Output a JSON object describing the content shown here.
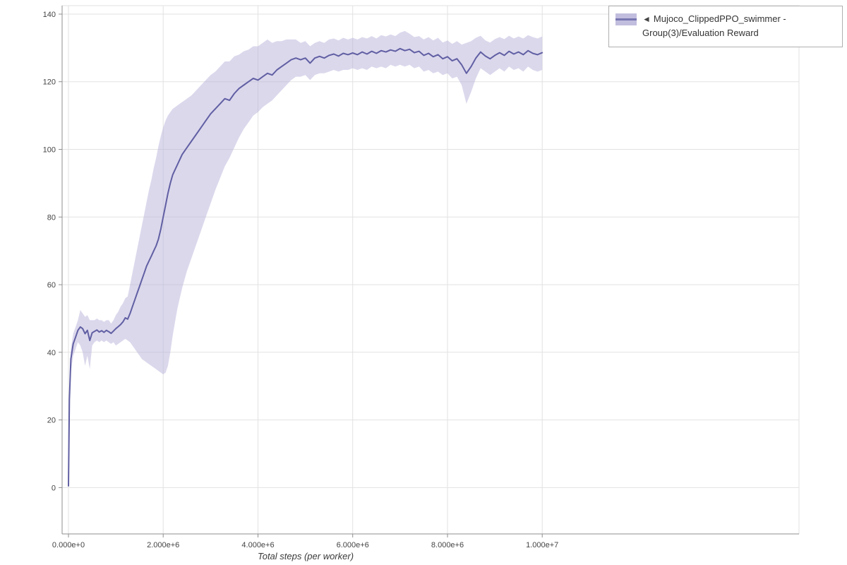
{
  "colors": {
    "line": "#615fa3",
    "band": "#b7b2d9",
    "grid": "#e2e2e2",
    "axis": "#8f8f8f",
    "tick_label": "#444444",
    "legend_border": "#b0b0b0"
  },
  "figure": {
    "legend": {
      "marker": "◄",
      "label": "Mujoco_ClippedPPO_swimmer - Group(3)/Evaluation Reward"
    }
  },
  "chart_data": {
    "type": "line",
    "title": "",
    "xlabel": "Total steps (per worker)",
    "ylabel": "",
    "x_unit": "millions of steps",
    "x_domain": [
      -0.134,
      15.42
    ],
    "y_domain": [
      -13.7,
      142.5
    ],
    "x_tick_values": [
      0,
      2,
      4,
      6,
      8,
      10
    ],
    "x_tick_labels": [
      "0.000e+0",
      "2.000e+6",
      "4.000e+6",
      "6.000e+6",
      "8.000e+6",
      "1.000e+7"
    ],
    "y_tick_values": [
      0,
      20,
      40,
      60,
      80,
      100,
      120,
      140
    ],
    "y_tick_labels": [
      "0",
      "20",
      "40",
      "60",
      "80",
      "100",
      "120",
      "140"
    ],
    "grid": true,
    "legend_position": "top-right-outside",
    "band_opacity": 0.5,
    "series": [
      {
        "name": "Mujoco_ClippedPPO_swimmer - Group(3)/Evaluation Reward",
        "x": [
          0.0,
          0.02,
          0.05,
          0.1,
          0.15,
          0.2,
          0.25,
          0.3,
          0.35,
          0.4,
          0.45,
          0.5,
          0.55,
          0.6,
          0.65,
          0.7,
          0.75,
          0.8,
          0.85,
          0.9,
          0.95,
          1.0,
          1.05,
          1.1,
          1.15,
          1.2,
          1.25,
          1.3,
          1.35,
          1.4,
          1.45,
          1.5,
          1.55,
          1.6,
          1.65,
          1.7,
          1.75,
          1.8,
          1.85,
          1.9,
          1.95,
          2.0,
          2.05,
          2.1,
          2.15,
          2.2,
          2.25,
          2.3,
          2.35,
          2.4,
          2.45,
          2.5,
          2.6,
          2.7,
          2.8,
          2.9,
          3.0,
          3.1,
          3.2,
          3.3,
          3.4,
          3.5,
          3.6,
          3.7,
          3.8,
          3.9,
          4.0,
          4.1,
          4.2,
          4.3,
          4.4,
          4.5,
          4.6,
          4.7,
          4.8,
          4.9,
          5.0,
          5.1,
          5.2,
          5.3,
          5.4,
          5.5,
          5.6,
          5.7,
          5.8,
          5.9,
          6.0,
          6.1,
          6.2,
          6.3,
          6.4,
          6.5,
          6.6,
          6.7,
          6.8,
          6.9,
          7.0,
          7.1,
          7.2,
          7.3,
          7.4,
          7.5,
          7.6,
          7.7,
          7.8,
          7.9,
          8.0,
          8.1,
          8.2,
          8.3,
          8.4,
          8.5,
          8.6,
          8.7,
          8.8,
          8.9,
          9.0,
          9.1,
          9.2,
          9.3,
          9.4,
          9.5,
          9.6,
          9.7,
          9.8,
          9.9,
          10.0
        ],
        "mean": [
          0.5,
          26,
          38,
          42.5,
          44.5,
          46.5,
          47.5,
          47.0,
          45.5,
          46.5,
          43.5,
          45.8,
          46.2,
          46.6,
          46.0,
          46.4,
          45.9,
          46.5,
          46.1,
          45.6,
          46.3,
          47.0,
          47.6,
          48.2,
          49.0,
          50.2,
          49.8,
          51.5,
          53.5,
          55.5,
          57.5,
          59.5,
          61.5,
          63.5,
          65.5,
          67.0,
          68.5,
          70.0,
          71.5,
          73.5,
          76.5,
          80.0,
          83.5,
          87.0,
          90.0,
          92.5,
          94.0,
          95.5,
          97.0,
          98.5,
          99.5,
          100.5,
          102.5,
          104.5,
          106.5,
          108.5,
          110.5,
          112.0,
          113.5,
          115.0,
          114.5,
          116.5,
          118.0,
          119.0,
          120.0,
          121.0,
          120.5,
          121.5,
          122.5,
          122.0,
          123.5,
          124.5,
          125.5,
          126.5,
          127.0,
          126.5,
          127.0,
          125.5,
          127.0,
          127.5,
          127.0,
          127.8,
          128.2,
          127.6,
          128.4,
          128.0,
          128.5,
          128.0,
          128.8,
          128.2,
          129.0,
          128.4,
          129.2,
          128.8,
          129.4,
          129.0,
          129.8,
          129.2,
          129.6,
          128.6,
          129.0,
          127.8,
          128.4,
          127.4,
          128.0,
          126.8,
          127.4,
          126.2,
          126.8,
          125.0,
          122.5,
          124.5,
          127.0,
          128.8,
          127.6,
          126.8,
          127.8,
          128.6,
          127.8,
          129.0,
          128.2,
          128.8,
          128.0,
          129.2,
          128.4,
          128.0,
          128.6
        ],
        "low": [
          0.5,
          24,
          34,
          39,
          41,
          43,
          42,
          40,
          36,
          39,
          35,
          42,
          43,
          43.5,
          43,
          43.5,
          43,
          43.5,
          43,
          42.5,
          43,
          42,
          42.5,
          43,
          43.5,
          44,
          43.5,
          43,
          42,
          41,
          40,
          39,
          38,
          37.5,
          37,
          36.5,
          36,
          35.5,
          35,
          34.5,
          34,
          33.5,
          34,
          36,
          40,
          45,
          49,
          53,
          56,
          59,
          61.5,
          64,
          68,
          72,
          76,
          80,
          84,
          88,
          91.5,
          95,
          97.5,
          100.5,
          103.5,
          106,
          108,
          110,
          111,
          112.5,
          113.5,
          114.5,
          116,
          117.5,
          119,
          120.5,
          121.5,
          121.5,
          122,
          120.5,
          122,
          122.5,
          122.5,
          123,
          123.5,
          123,
          123.5,
          123.5,
          124,
          123.5,
          124,
          123.5,
          124.5,
          124,
          124.5,
          124,
          125,
          124.5,
          125,
          124.5,
          125,
          124,
          124.5,
          123,
          123.5,
          122.5,
          123,
          122,
          122.5,
          121,
          121.5,
          119,
          113.5,
          117,
          121,
          124,
          123,
          122,
          123,
          124,
          123,
          124.5,
          123.5,
          124,
          123,
          124.5,
          123.5,
          123,
          123.5
        ],
        "high": [
          1,
          28,
          41,
          45.5,
          47.5,
          49.5,
          52.5,
          51.5,
          50.5,
          51,
          49.5,
          49.5,
          49.5,
          50,
          49.5,
          49.5,
          49,
          49.5,
          49.5,
          48.5,
          49.5,
          51,
          52,
          53.5,
          54.5,
          56,
          56.5,
          60,
          63.5,
          67,
          70.5,
          74,
          77.5,
          81,
          84.5,
          88,
          91,
          94.5,
          97.5,
          101,
          104,
          106.5,
          108.5,
          110,
          111,
          112,
          112.5,
          113,
          113.5,
          114,
          114.5,
          115,
          116,
          117.5,
          119,
          120.5,
          122,
          123,
          124.5,
          126,
          126,
          127.5,
          128,
          129,
          129.5,
          130.5,
          130.5,
          131.5,
          132.5,
          131.5,
          132,
          132,
          132.5,
          132.5,
          132.5,
          131.5,
          132,
          130.5,
          131.5,
          132,
          131.5,
          132.5,
          132.8,
          132.2,
          133,
          132.5,
          133,
          132.5,
          133.2,
          132.8,
          133.5,
          132.8,
          133.8,
          133.4,
          134,
          133.5,
          134.5,
          135,
          134.2,
          133.2,
          133.5,
          132.5,
          133.2,
          132.2,
          133,
          131.6,
          132.2,
          131.2,
          132,
          131,
          131.5,
          132,
          133,
          133.6,
          132.2,
          131.6,
          132.6,
          133.2,
          132.6,
          133.6,
          132.8,
          133.4,
          132.8,
          133.8,
          133.2,
          132.8,
          133.4
        ]
      }
    ]
  }
}
